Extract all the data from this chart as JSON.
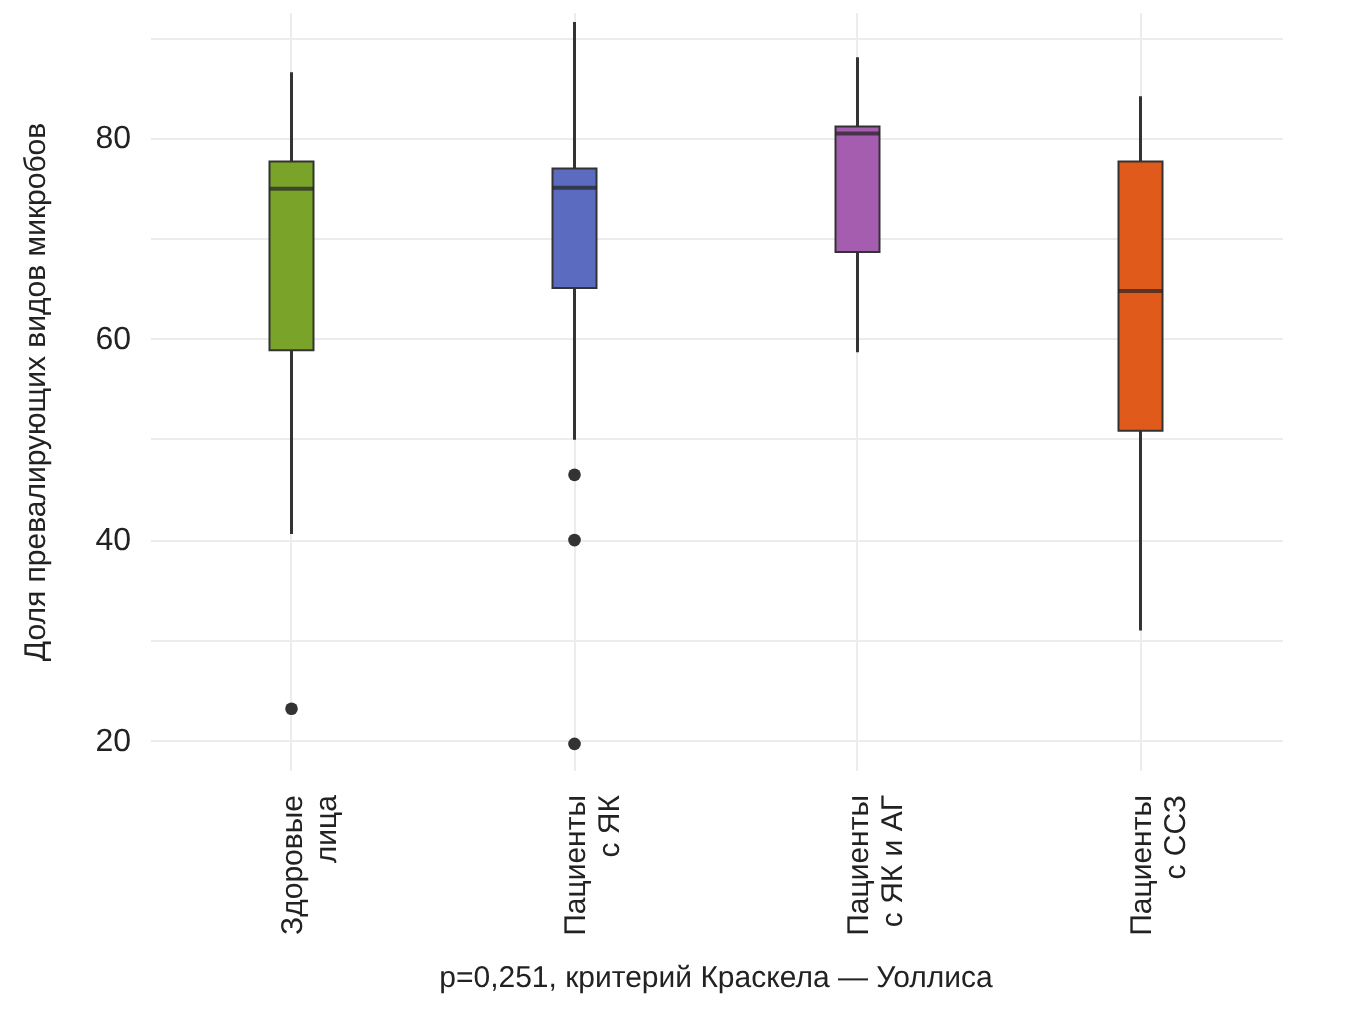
{
  "chart_data": {
    "type": "box",
    "ylabel": "Доля превалирующих видов микробов",
    "annotations": [
      "p=0,251, критерий Краскела — Уоллиса"
    ],
    "categories": [
      "Здоровые\nлица",
      "Пациенты\nс ЯК",
      "Пациенты\nс ЯК и АГ",
      "Пациенты\nс ССЗ"
    ],
    "colors": [
      "#7aa32a",
      "#5b6cc0",
      "#a55db0",
      "#e05a1c"
    ],
    "boxes": [
      {
        "low": 40.5,
        "q1": 58.8,
        "median": 74.9,
        "q3": 77.6,
        "high": 86.5,
        "outliers": [
          23.1
        ]
      },
      {
        "low": 49.9,
        "q1": 65.0,
        "median": 75.0,
        "q3": 76.9,
        "high": 91.5,
        "outliers": [
          46.4,
          39.9,
          19.6
        ]
      },
      {
        "low": 58.6,
        "q1": 68.6,
        "median": 80.4,
        "q3": 81.1,
        "high": 88.0
      },
      {
        "low": 30.9,
        "q1": 50.8,
        "median": 64.7,
        "q3": 77.6,
        "high": 84.1
      }
    ],
    "ylim": [
      17,
      92.5
    ],
    "yticks": [
      20,
      {
        "value": 30,
        "label": null
      },
      40,
      {
        "value": 50,
        "label": null
      },
      60,
      {
        "value": 70,
        "label": null
      },
      80,
      {
        "value": 90,
        "label": null
      }
    ],
    "grid": true
  }
}
